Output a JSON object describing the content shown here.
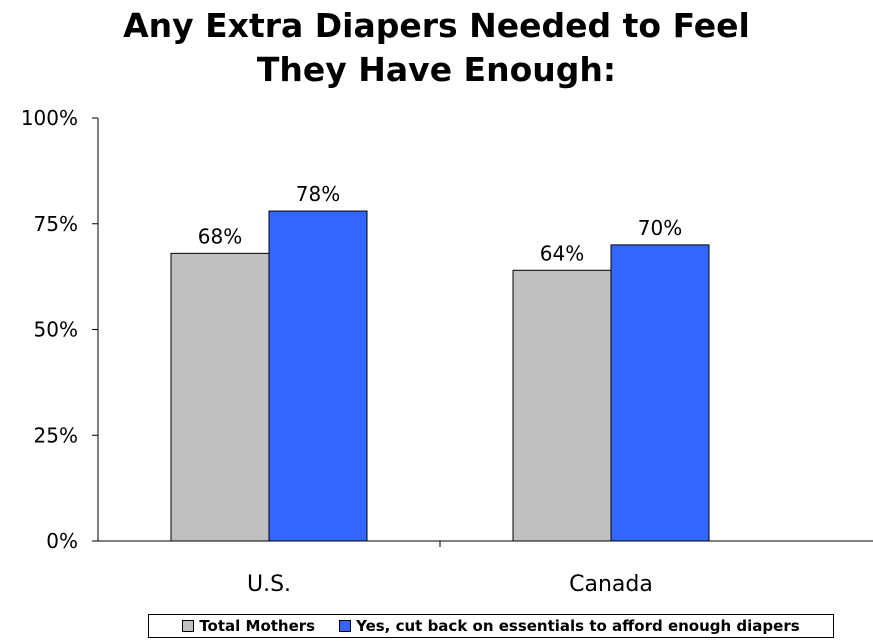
{
  "chart_data": {
    "type": "bar",
    "title": "Any Extra Diapers Needed to Feel They Have Enough:",
    "title_lines": [
      "Any Extra Diapers Needed to Feel",
      "They Have Enough:"
    ],
    "categories": [
      "U.S.",
      "Canada"
    ],
    "series": [
      {
        "name": "Total Mothers",
        "values": [
          68,
          64
        ],
        "labels": [
          "68%",
          "64%"
        ],
        "color": "#c0c0c0"
      },
      {
        "name": "Yes, cut back on essentials to afford enough diapers",
        "values": [
          78,
          70
        ],
        "labels": [
          "78%",
          "70%"
        ],
        "color": "#3366ff"
      }
    ],
    "ylim": [
      0,
      100
    ],
    "yticks": [
      0,
      25,
      50,
      75,
      100
    ],
    "ytick_labels": [
      "0%",
      "25%",
      "50%",
      "75%",
      "100%"
    ],
    "xlabel": "",
    "ylabel": "",
    "grid": false,
    "legend_position": "bottom"
  }
}
